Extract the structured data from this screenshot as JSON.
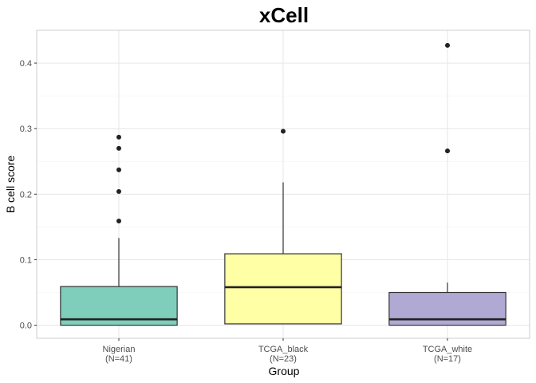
{
  "chart_data": {
    "type": "box",
    "title": "xCell",
    "xlabel": "Group",
    "ylabel": "B cell score",
    "ylim": [
      -0.02,
      0.45
    ],
    "yticks": [
      0.0,
      0.1,
      0.2,
      0.3,
      0.4
    ],
    "yticks_labels": [
      "0.0",
      "0.1",
      "0.2",
      "0.3",
      "0.4"
    ],
    "grid": true,
    "categories": [
      "Nigerian",
      "TCGA_black",
      "TCGA_white"
    ],
    "counts": [
      "(N=41)",
      "(N=23)",
      "(N=17)"
    ],
    "boxes": [
      {
        "category": "Nigerian",
        "min": 0.0,
        "q1": 0.0,
        "median": 0.009,
        "q3": 0.059,
        "max": 0.133,
        "outliers": [
          0.159,
          0.204,
          0.237,
          0.27,
          0.287
        ],
        "color": "#7fcdbb"
      },
      {
        "category": "TCGA_black",
        "min": 0.002,
        "q1": 0.002,
        "median": 0.058,
        "q3": 0.109,
        "max": 0.218,
        "outliers": [
          0.296
        ],
        "color": "#ffffa6"
      },
      {
        "category": "TCGA_white",
        "min": 0.0,
        "q1": 0.0,
        "median": 0.009,
        "q3": 0.05,
        "max": 0.065,
        "outliers": [
          0.266,
          0.427
        ],
        "color": "#b0a9d3"
      }
    ]
  }
}
